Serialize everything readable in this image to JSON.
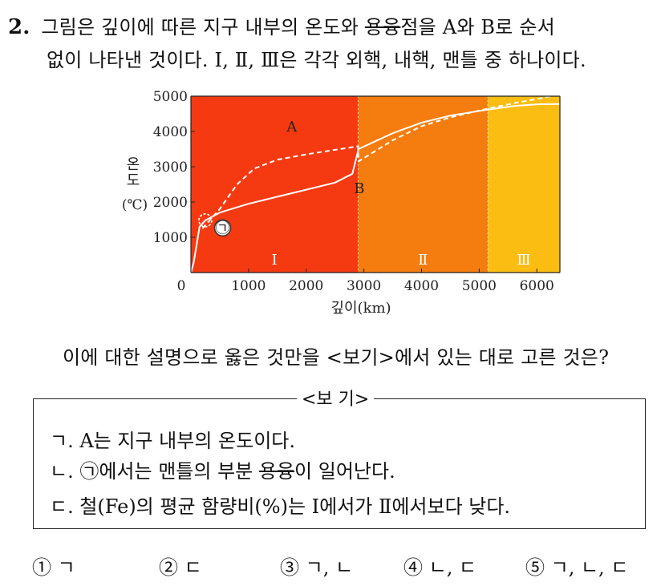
{
  "question": {
    "number": "2.",
    "line1_pre": "그림은 깊이에 따른 지구 내부의 온도와 ",
    "line1_strike": "용융",
    "line1_post": "점을 A와 B로 순서",
    "line2": "없이 나타낸 것이다. Ⅰ, Ⅱ, Ⅲ은 각각 외핵, 내핵, 맨틀 중 하나이다.",
    "prompt": "이에 대한 설명으로 옳은 것만을 <보기>에서 있는 대로 고른 것은?"
  },
  "chart_data": {
    "type": "line",
    "xlabel": "깊이(km)",
    "ylabel_chars": [
      "온",
      "도"
    ],
    "ylabel_unit": "(℃)",
    "xlim": [
      0,
      6400
    ],
    "ylim": [
      0,
      5000
    ],
    "x_ticks": [
      0,
      1000,
      2000,
      3000,
      4000,
      5000,
      6000
    ],
    "x_tick_labels": [
      "0",
      "1000",
      "2000",
      "3000",
      "4000",
      "5000",
      "6000"
    ],
    "y_ticks": [
      1000,
      2000,
      3000,
      4000,
      5000
    ],
    "y_tick_labels": [
      "1000",
      "2000",
      "3000",
      "4000",
      "5000"
    ],
    "regions": [
      {
        "label": "Ⅰ",
        "from": 0,
        "to": 2900,
        "color": "#f53a12"
      },
      {
        "label": "Ⅱ",
        "from": 2900,
        "to": 5150,
        "color": "#f57c0e"
      },
      {
        "label": "Ⅲ",
        "from": 5150,
        "to": 6400,
        "color": "#fbbd12"
      }
    ],
    "series": [
      {
        "name": "A",
        "style": "dashed",
        "x": [
          200,
          500,
          800,
          1100,
          1500,
          2000,
          2500,
          2900,
          2905,
          3500,
          4000,
          4500,
          5150,
          5600,
          6000,
          6400
        ],
        "y": [
          1250,
          1800,
          2500,
          2950,
          3200,
          3350,
          3480,
          3580,
          3150,
          3750,
          4150,
          4400,
          4650,
          4800,
          4920,
          5050
        ]
      },
      {
        "name": "B",
        "style": "solid",
        "x": [
          0,
          50,
          100,
          150,
          250,
          500,
          1000,
          1500,
          2000,
          2500,
          2800,
          2900,
          2905,
          3500,
          4000,
          4500,
          5150,
          5600,
          6000,
          6400
        ],
        "y": [
          0,
          300,
          800,
          1300,
          1480,
          1700,
          1950,
          2150,
          2350,
          2550,
          2800,
          3450,
          3500,
          3950,
          4250,
          4450,
          4620,
          4720,
          4770,
          4780
        ]
      }
    ],
    "annotations": [
      {
        "text": "A",
        "x": 1750,
        "y": 4000
      },
      {
        "text": "B",
        "x": 2920,
        "y": 2250
      },
      {
        "text": "㉠",
        "x": 550,
        "y": 1130
      }
    ],
    "marker": {
      "x": 250,
      "y": 1480
    }
  },
  "bogi": {
    "title": "<보 기>",
    "items": [
      {
        "text": "ㄱ. A는 지구 내부의 온도이다."
      },
      {
        "text_pre": "ㄴ. ㉠에서는 맨틀의 부분 ",
        "text_strike": "용융",
        "text_post": "이 일어난다."
      },
      {
        "text": "ㄷ. 철(Fe)의 평균 함량비(%)는 Ⅰ에서가 Ⅱ에서보다 낮다."
      }
    ]
  },
  "choices": [
    {
      "num": "①",
      "text": "ㄱ"
    },
    {
      "num": "②",
      "text": "ㄷ"
    },
    {
      "num": "③",
      "text": "ㄱ, ㄴ"
    },
    {
      "num": "④",
      "text": "ㄴ, ㄷ"
    },
    {
      "num": "⑤",
      "text": "ㄱ, ㄴ, ㄷ"
    }
  ]
}
